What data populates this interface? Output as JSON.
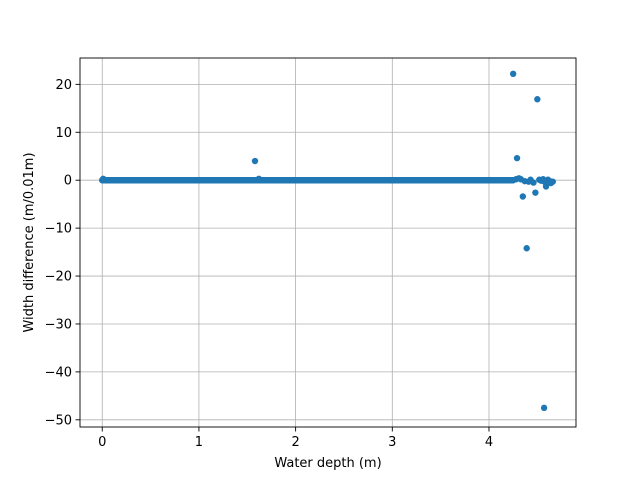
{
  "chart_data": {
    "type": "scatter",
    "title": "",
    "xlabel": "Water depth (m)",
    "ylabel": "Width difference (m/0.01m)",
    "xlim": [
      -0.23,
      4.9
    ],
    "ylim": [
      -51.5,
      25.5
    ],
    "xticks": [
      0,
      1,
      2,
      3,
      4
    ],
    "yticks": [
      -50,
      -40,
      -30,
      -20,
      -10,
      0,
      10,
      20
    ],
    "grid": true,
    "legend": "none",
    "marker_color": "#1f77b4",
    "baseline_segment": {
      "x_start": 0.0,
      "x_end": 4.25,
      "y": 0.0
    },
    "points": [
      {
        "x": 0.01,
        "y": 0.3
      },
      {
        "x": 1.58,
        "y": 4.0
      },
      {
        "x": 1.62,
        "y": 0.3
      },
      {
        "x": 4.25,
        "y": 22.2
      },
      {
        "x": 4.28,
        "y": 0.2
      },
      {
        "x": 4.29,
        "y": 4.6
      },
      {
        "x": 4.31,
        "y": 0.4
      },
      {
        "x": 4.33,
        "y": 0.2
      },
      {
        "x": 4.35,
        "y": -3.4
      },
      {
        "x": 4.37,
        "y": -0.2
      },
      {
        "x": 4.39,
        "y": -14.2
      },
      {
        "x": 4.41,
        "y": -0.3
      },
      {
        "x": 4.43,
        "y": 0.1
      },
      {
        "x": 4.46,
        "y": -0.5
      },
      {
        "x": 4.48,
        "y": -2.6
      },
      {
        "x": 4.5,
        "y": 16.9
      },
      {
        "x": 4.52,
        "y": 0.1
      },
      {
        "x": 4.54,
        "y": -0.1
      },
      {
        "x": 4.56,
        "y": 0.2
      },
      {
        "x": 4.57,
        "y": -47.5
      },
      {
        "x": 4.58,
        "y": -0.4
      },
      {
        "x": 4.59,
        "y": -1.3
      },
      {
        "x": 4.61,
        "y": 0.1
      },
      {
        "x": 4.63,
        "y": -0.2
      },
      {
        "x": 4.64,
        "y": -0.6
      },
      {
        "x": 4.66,
        "y": -0.3
      }
    ]
  }
}
